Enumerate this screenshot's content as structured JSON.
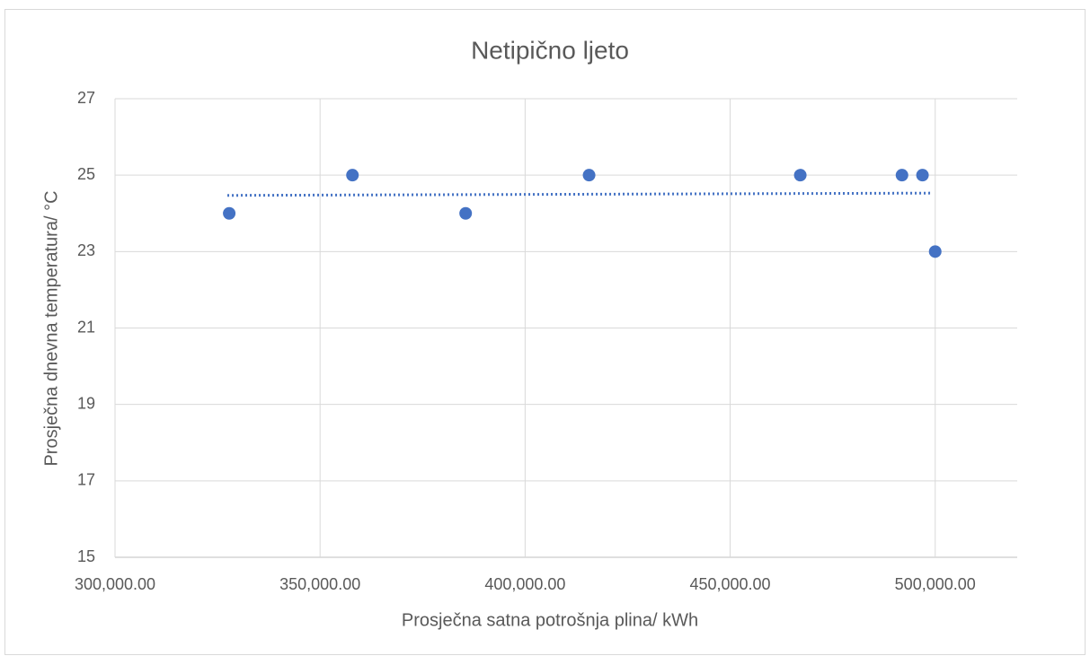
{
  "chart_data": {
    "type": "scatter",
    "title": "Netipično ljeto",
    "x_label": "Prosječna satna potrošnja plina/ kWh",
    "y_label": "Prosječna dnevna temperatura/ °C",
    "series": [
      {
        "color": "#4472c4",
        "x": [
          327850,
          357900,
          385500,
          415600,
          467100,
          491900,
          496900,
          500000
        ],
        "values": [
          24,
          25,
          24,
          25,
          25,
          25,
          25,
          23
        ]
      }
    ],
    "trendline": {
      "color": "#4472c4",
      "x": [
        327400,
        498800
      ],
      "values": [
        24.47,
        24.53
      ]
    },
    "xlim": [
      300000,
      520000
    ],
    "xticks": [
      {
        "value": 300000,
        "label": "300,000.00"
      },
      {
        "value": 350000,
        "label": "350,000.00"
      },
      {
        "value": 400000,
        "label": "400,000.00"
      },
      {
        "value": 450000,
        "label": "450,000.00"
      },
      {
        "value": 500000,
        "label": "500,000.00"
      }
    ],
    "ylim": [
      15,
      27
    ],
    "yticks": [
      15,
      17,
      19,
      21,
      23,
      25,
      27
    ],
    "grid": true
  }
}
